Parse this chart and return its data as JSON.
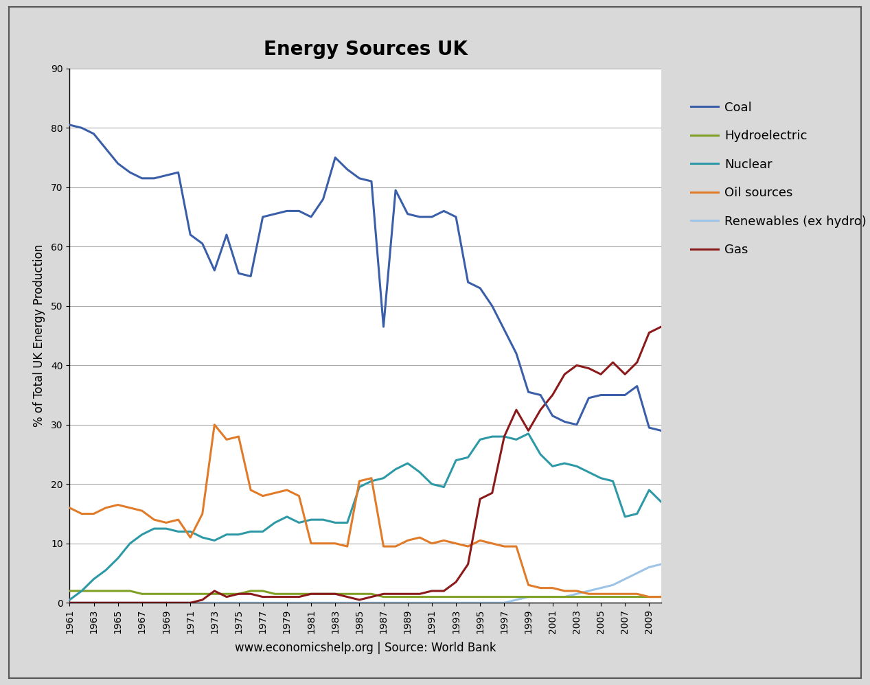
{
  "title": "Energy Sources UK",
  "xlabel": "www.economicshelp.org | Source: World Bank",
  "ylabel": "% of Total UK Energy Production",
  "years": [
    1961,
    1962,
    1963,
    1964,
    1965,
    1966,
    1967,
    1968,
    1969,
    1970,
    1971,
    1972,
    1973,
    1974,
    1975,
    1976,
    1977,
    1978,
    1979,
    1980,
    1981,
    1982,
    1983,
    1984,
    1985,
    1986,
    1987,
    1988,
    1989,
    1990,
    1991,
    1992,
    1993,
    1994,
    1995,
    1996,
    1997,
    1998,
    1999,
    2000,
    2001,
    2002,
    2003,
    2004,
    2005,
    2006,
    2007,
    2008,
    2009,
    2010
  ],
  "coal": [
    80.5,
    80.0,
    79.0,
    76.5,
    74.0,
    72.5,
    71.5,
    71.5,
    72.0,
    72.5,
    62.0,
    60.5,
    56.0,
    62.0,
    55.5,
    55.0,
    65.0,
    65.5,
    66.0,
    66.0,
    65.0,
    68.0,
    75.0,
    73.0,
    71.5,
    71.0,
    46.5,
    69.5,
    65.5,
    65.0,
    65.0,
    66.0,
    65.0,
    54.0,
    53.0,
    50.0,
    46.0,
    42.0,
    35.5,
    35.0,
    31.5,
    30.5,
    30.0,
    34.5,
    35.0,
    35.0,
    35.0,
    36.5,
    29.5,
    29.0
  ],
  "hydro": [
    2.0,
    2.0,
    2.0,
    2.0,
    2.0,
    2.0,
    1.5,
    1.5,
    1.5,
    1.5,
    1.5,
    1.5,
    1.5,
    1.5,
    1.5,
    2.0,
    2.0,
    1.5,
    1.5,
    1.5,
    1.5,
    1.5,
    1.5,
    1.5,
    1.5,
    1.5,
    1.0,
    1.0,
    1.0,
    1.0,
    1.0,
    1.0,
    1.0,
    1.0,
    1.0,
    1.0,
    1.0,
    1.0,
    1.0,
    1.0,
    1.0,
    1.0,
    1.0,
    1.0,
    1.0,
    1.0,
    1.0,
    1.0,
    1.0,
    1.0
  ],
  "nuclear": [
    0.5,
    2.0,
    4.0,
    5.5,
    7.5,
    10.0,
    11.5,
    12.5,
    12.5,
    12.0,
    12.0,
    11.0,
    10.5,
    11.5,
    11.5,
    12.0,
    12.0,
    13.5,
    14.5,
    13.5,
    14.0,
    14.0,
    13.5,
    13.5,
    19.5,
    20.5,
    21.0,
    22.5,
    23.5,
    22.0,
    20.0,
    19.5,
    24.0,
    24.5,
    27.5,
    28.0,
    28.0,
    27.5,
    28.5,
    25.0,
    23.0,
    23.5,
    23.0,
    22.0,
    21.0,
    20.5,
    14.5,
    15.0,
    19.0,
    17.0
  ],
  "oil": [
    16.0,
    15.0,
    15.0,
    16.0,
    16.5,
    16.0,
    15.5,
    14.0,
    13.5,
    14.0,
    11.0,
    15.0,
    30.0,
    27.5,
    28.0,
    19.0,
    18.0,
    18.5,
    19.0,
    18.0,
    10.0,
    10.0,
    10.0,
    9.5,
    20.5,
    21.0,
    9.5,
    9.5,
    10.5,
    11.0,
    10.0,
    10.5,
    10.0,
    9.5,
    10.5,
    10.0,
    9.5,
    9.5,
    3.0,
    2.5,
    2.5,
    2.0,
    2.0,
    1.5,
    1.5,
    1.5,
    1.5,
    1.5,
    1.0,
    1.0
  ],
  "renewables": [
    0.0,
    0.0,
    0.0,
    0.0,
    0.0,
    0.0,
    0.0,
    0.0,
    0.0,
    0.0,
    0.0,
    0.0,
    0.0,
    0.0,
    0.0,
    0.0,
    0.0,
    0.0,
    0.0,
    0.0,
    0.0,
    0.0,
    0.0,
    0.0,
    0.0,
    0.0,
    0.0,
    0.0,
    0.0,
    0.0,
    0.0,
    0.0,
    0.0,
    0.0,
    0.0,
    0.0,
    0.0,
    0.5,
    1.0,
    1.0,
    1.0,
    1.0,
    1.5,
    2.0,
    2.5,
    3.0,
    4.0,
    5.0,
    6.0,
    6.5
  ],
  "gas": [
    0.0,
    0.0,
    0.0,
    0.0,
    0.0,
    0.0,
    0.0,
    0.0,
    0.0,
    0.0,
    0.0,
    0.5,
    2.0,
    1.0,
    1.5,
    1.5,
    1.0,
    1.0,
    1.0,
    1.0,
    1.5,
    1.5,
    1.5,
    1.0,
    0.5,
    1.0,
    1.5,
    1.5,
    1.5,
    1.5,
    2.0,
    2.0,
    3.5,
    6.5,
    17.5,
    18.5,
    28.0,
    32.5,
    29.0,
    32.5,
    35.0,
    38.5,
    40.0,
    39.5,
    38.5,
    40.5,
    38.5,
    40.5,
    45.5,
    46.5
  ],
  "colors": {
    "coal": "#3A5FA8",
    "hydro": "#7FA025",
    "nuclear": "#2E99A6",
    "oil": "#E07B29",
    "renewables": "#9DC3E6",
    "gas": "#8B1A1A"
  },
  "ylim": [
    0,
    90
  ],
  "yticks": [
    0,
    10,
    20,
    30,
    40,
    50,
    60,
    70,
    80,
    90
  ],
  "xlim": [
    1961,
    2010
  ],
  "xtick_positions": [
    1961,
    1963,
    1965,
    1967,
    1969,
    1971,
    1973,
    1975,
    1977,
    1979,
    1981,
    1983,
    1985,
    1987,
    1989,
    1991,
    1993,
    1995,
    1997,
    1999,
    2001,
    2003,
    2005,
    2007,
    2009
  ],
  "xtick_labels": [
    "1961",
    "1963",
    "1965",
    "1967",
    "1969",
    "1971",
    "1973",
    "1975",
    "1977",
    "1979",
    "1981",
    "1983",
    "1985",
    "1987",
    "1989",
    "1991",
    "1993",
    "1995",
    "1997",
    "1999",
    "2001",
    "2003",
    "2005",
    "2007",
    "2009"
  ],
  "outer_bg": "#D9D9D9",
  "inner_bg": "#FFFFFF",
  "grid_color": "#AAAAAA",
  "linewidth": 2.2,
  "title_fontsize": 20,
  "axis_label_fontsize": 12,
  "tick_fontsize": 10,
  "legend_fontsize": 13
}
